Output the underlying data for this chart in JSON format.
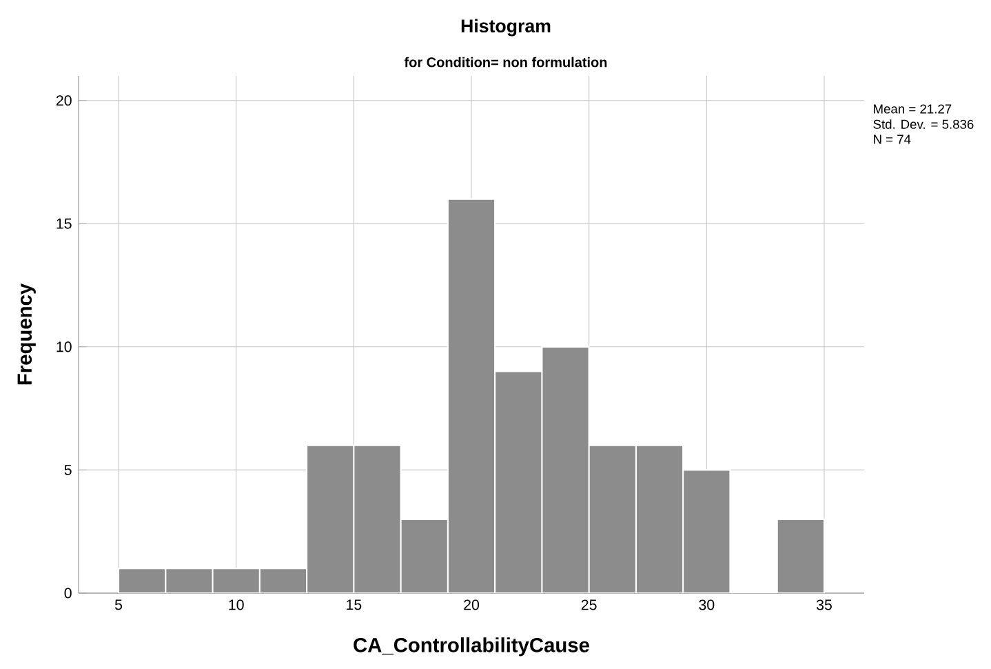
{
  "chart_data": {
    "type": "histogram",
    "title": "Histogram",
    "subtitle": "for Condition= non formulation",
    "xlabel": "CA_ControllabilityCause",
    "ylabel": "Frequency",
    "bins": [
      5,
      7,
      9,
      11,
      13,
      15,
      17,
      19,
      21,
      23,
      25,
      27,
      29,
      31,
      33,
      35
    ],
    "values": [
      1,
      1,
      1,
      1,
      6,
      6,
      3,
      16,
      9,
      10,
      6,
      6,
      5,
      0,
      3
    ],
    "color": "#8c8c8c",
    "xlim": [
      3.3,
      36.7
    ],
    "ylim": [
      0,
      21
    ],
    "xticks": [
      5,
      10,
      15,
      20,
      25,
      30,
      35
    ],
    "yticks": [
      0,
      5,
      10,
      15,
      20
    ],
    "grid": true,
    "annotations": [
      "Mean = 21.27",
      "Std. Dev. = 5.836",
      "N = 74"
    ]
  }
}
